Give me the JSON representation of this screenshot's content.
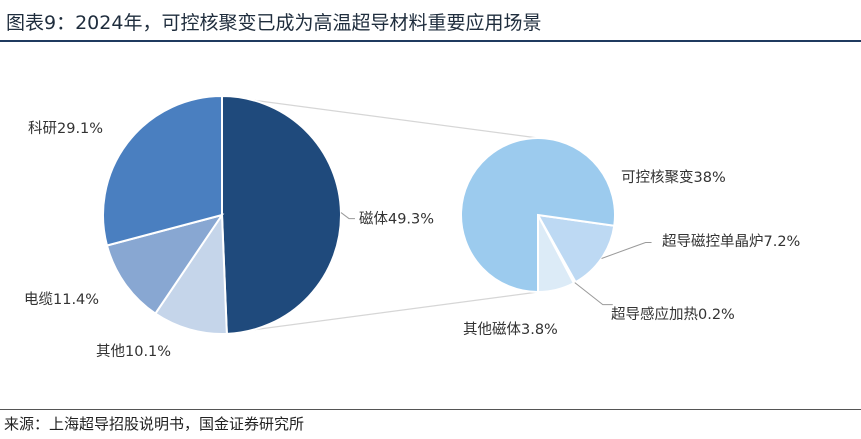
{
  "header": {
    "title": "图表9：2024年，可控核聚变已成为高温超导材料重要应用场景"
  },
  "footer": {
    "source": "来源：上海超导招股说明书，国金证券研究所"
  },
  "chart_data": [
    {
      "type": "pie",
      "title": "",
      "slices": [
        {
          "label": "磁体",
          "value": 49.3,
          "display": "磁体49.3%",
          "color": "#1f4a7c"
        },
        {
          "label": "其他",
          "value": 10.1,
          "display": "其他10.1%",
          "color": "#c5d5ea"
        },
        {
          "label": "电缆",
          "value": 11.4,
          "display": "电缆11.4%",
          "color": "#88a7d2"
        },
        {
          "label": "科研",
          "value": 29.1,
          "display": "科研29.1%",
          "color": "#4a7fc0"
        }
      ]
    },
    {
      "type": "pie",
      "title": "",
      "slices": [
        {
          "label": "其他磁体",
          "value": 3.8,
          "display": "其他磁体3.8%",
          "color": "#dcebf7"
        },
        {
          "label": "超导感应加热",
          "value": 0.2,
          "display": "超导感应加热0.2%",
          "color": "#cfe3f6"
        },
        {
          "label": "超导磁控单晶炉",
          "value": 7.2,
          "display": "超导磁控单晶炉7.2%",
          "color": "#bdd9f3"
        },
        {
          "label": "可控核聚变",
          "value": 38,
          "display": "可控核聚变38%",
          "color": "#9ccbee"
        }
      ]
    }
  ]
}
